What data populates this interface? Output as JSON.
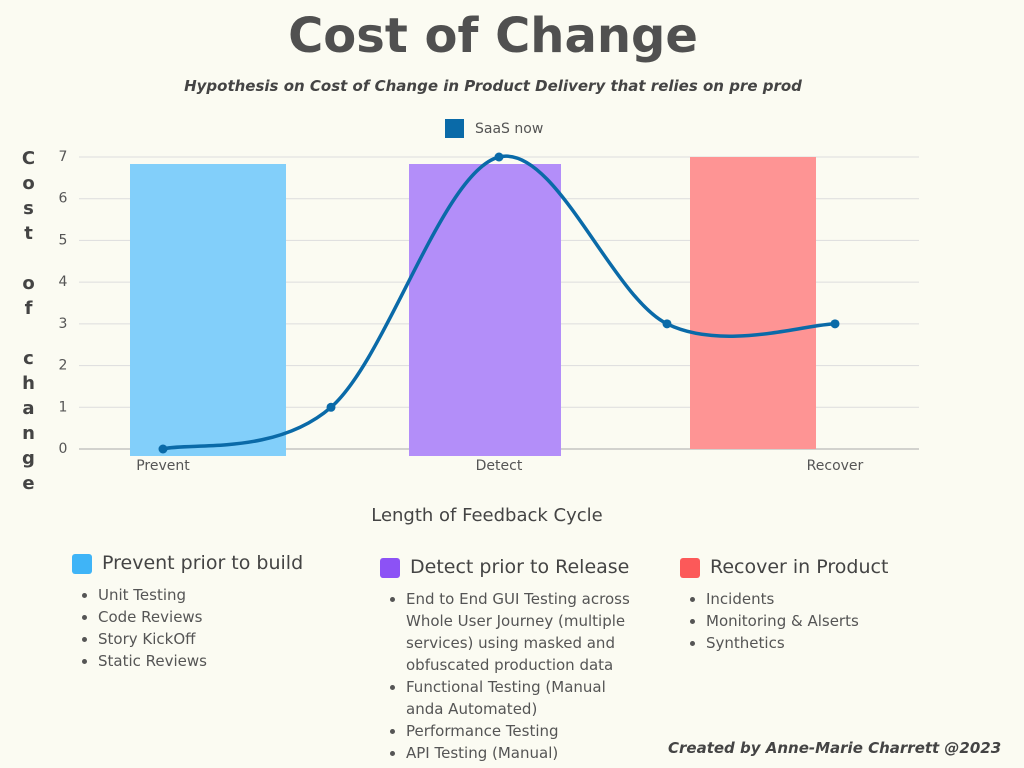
{
  "chart_data": {
    "type": "line",
    "title": "Cost of Change",
    "subtitle": "Hypothesis on Cost of Change in Product Delivery that relies on pre prod",
    "y_label": "Cost of change",
    "x_label": "Length of Feedback Cycle",
    "categories": [
      "Prevent",
      null,
      "Detect",
      null,
      "Recover"
    ],
    "series": [
      {
        "name": "SaaS now",
        "color": "#0a6aa8",
        "values": [
          0,
          1,
          7,
          3,
          3
        ]
      }
    ],
    "ylim": [
      0,
      7
    ],
    "yticks": [
      0,
      1,
      2,
      3,
      4,
      5,
      6,
      7
    ],
    "grid": true,
    "legend": "top",
    "smooth": true
  },
  "sections": [
    {
      "title": "Prevent prior to build",
      "items": [
        "Unit Testing",
        "Code Reviews",
        "Story KickOff",
        "Static Reviews"
      ]
    },
    {
      "title": "Detect prior to Release",
      "items": [
        "End to End GUI Testing across Whole User Journey (multiple services)  using masked and obfuscated production data",
        "Functional Testing (Manual anda Automated)",
        "Performance Testing",
        "API Testing (Manual)"
      ]
    },
    {
      "title": "Recover in Product",
      "items": [
        "Incidents",
        "Monitoring & Alserts",
        "Synthetics"
      ]
    }
  ],
  "credit": "Created  by Anne-Marie Charrett @2023"
}
